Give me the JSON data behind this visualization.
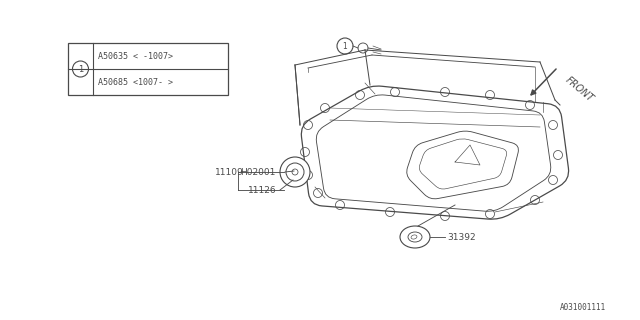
{
  "bg_color": "#ffffff",
  "line_color": "#4a4a4a",
  "footer_text": "A031001111",
  "legend_row1": "A50635「-1007」",
  "legend_row2": "A50685「1007-」",
  "legend_row1_ascii": "A50635 < -1007>",
  "legend_row2_ascii": "A50685 <1007- >",
  "front_text": "FRONT"
}
